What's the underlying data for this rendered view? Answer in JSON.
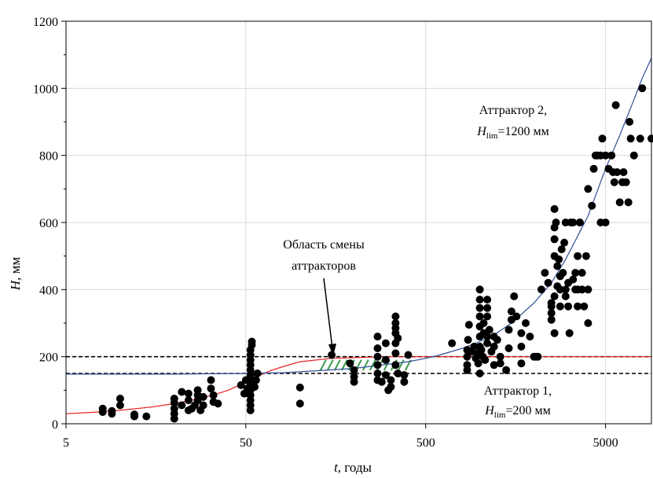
{
  "chart_data": {
    "type": "scatter",
    "xscale": "log",
    "xlim": [
      5,
      9000
    ],
    "ylim": [
      0,
      1200
    ],
    "xticks": [
      5,
      50,
      500,
      5000
    ],
    "xtick_labels": [
      "5",
      "50",
      "500",
      "5000"
    ],
    "yticks": [
      0,
      200,
      400,
      600,
      800,
      1000,
      1200
    ],
    "ytick_labels": [
      "0",
      "200",
      "400",
      "600",
      "800",
      "1000",
      "1200"
    ],
    "xlabel": {
      "var": "t",
      "rest": ", годы"
    },
    "ylabel": {
      "var": "H",
      "rest": ", мм"
    },
    "grid": true,
    "annotations": {
      "region_label": [
        "Область смены",
        "аттракторов"
      ],
      "attractor1": {
        "line1": "Аттрактор 1,",
        "var": "H",
        "sub": "lim",
        "rest": "=200 мм"
      },
      "attractor2": {
        "line1": "Аттрактор 2,",
        "var": "H",
        "sub": "lim",
        "rest": "=1200 мм"
      }
    },
    "reference_lines": [
      {
        "y": 200,
        "style": "dashed",
        "color": "#000000"
      },
      {
        "y": 150,
        "style": "dashed",
        "color": "#000000"
      }
    ],
    "attractor1_curve": {
      "color": "#e8201e",
      "x": [
        5,
        7,
        10,
        15,
        20,
        25,
        30,
        35,
        40,
        45,
        50,
        55,
        60,
        70,
        80,
        100,
        150,
        300,
        500,
        1000,
        9000
      ],
      "y": [
        30,
        34,
        40,
        50,
        60,
        70,
        80,
        90,
        100,
        113,
        125,
        137,
        145,
        160,
        170,
        185,
        195,
        200,
        200,
        200,
        200
      ]
    },
    "attractor2_curve": {
      "color": "#2f4f9a",
      "x": [
        5,
        20,
        50,
        80,
        100,
        200,
        400,
        500,
        600,
        800,
        1000,
        1200,
        1500,
        2000,
        2500,
        3000,
        4000,
        5000,
        6000,
        7000,
        8000,
        9000
      ],
      "y": [
        148,
        148,
        150,
        152,
        155,
        165,
        185,
        195,
        205,
        225,
        245,
        265,
        300,
        360,
        420,
        490,
        620,
        760,
        860,
        950,
        1030,
        1090
      ]
    },
    "transition_region": {
      "x": [
        130,
        400
      ],
      "y": [
        150,
        200
      ],
      "color": "#3a9a4a"
    },
    "series": [
      {
        "marker": "circle",
        "color": "#000000",
        "points": [
          [
            8,
            45
          ],
          [
            8,
            35
          ],
          [
            9,
            38
          ],
          [
            9,
            30
          ],
          [
            10,
            75
          ],
          [
            10,
            55
          ],
          [
            12,
            28
          ],
          [
            12,
            22
          ],
          [
            14,
            22
          ],
          [
            20,
            15
          ],
          [
            20,
            30
          ],
          [
            20,
            45
          ],
          [
            20,
            62
          ],
          [
            20,
            75
          ],
          [
            22,
            95
          ],
          [
            22,
            55
          ],
          [
            24,
            70
          ],
          [
            24,
            90
          ],
          [
            24,
            40
          ],
          [
            25,
            45
          ],
          [
            26,
            55
          ],
          [
            27,
            70
          ],
          [
            27,
            85
          ],
          [
            27,
            100
          ],
          [
            28,
            40
          ],
          [
            29,
            55
          ],
          [
            29,
            80
          ],
          [
            32,
            130
          ],
          [
            32,
            105
          ],
          [
            33,
            65
          ],
          [
            33,
            85
          ],
          [
            35,
            60
          ],
          [
            47,
            115
          ],
          [
            49,
            90
          ],
          [
            50,
            130
          ],
          [
            51,
            105
          ],
          [
            53,
            40
          ],
          [
            53,
            55
          ],
          [
            53,
            70
          ],
          [
            53,
            85
          ],
          [
            53,
            100
          ],
          [
            53,
            115
          ],
          [
            53,
            130
          ],
          [
            53,
            145
          ],
          [
            53,
            160
          ],
          [
            53,
            175
          ],
          [
            53,
            190
          ],
          [
            53,
            205
          ],
          [
            53,
            220
          ],
          [
            54,
            235
          ],
          [
            54,
            245
          ],
          [
            56,
            110
          ],
          [
            57,
            130
          ],
          [
            58,
            150
          ],
          [
            100,
            108
          ],
          [
            100,
            60
          ],
          [
            150,
            205
          ],
          [
            190,
            180
          ],
          [
            200,
            160
          ],
          [
            200,
            140
          ],
          [
            200,
            125
          ],
          [
            270,
            130
          ],
          [
            270,
            150
          ],
          [
            270,
            175
          ],
          [
            270,
            200
          ],
          [
            270,
            225
          ],
          [
            270,
            260
          ],
          [
            285,
            125
          ],
          [
            300,
            145
          ],
          [
            300,
            190
          ],
          [
            300,
            240
          ],
          [
            310,
            100
          ],
          [
            320,
            110
          ],
          [
            320,
            130
          ],
          [
            340,
            175
          ],
          [
            340,
            210
          ],
          [
            340,
            240
          ],
          [
            340,
            270
          ],
          [
            340,
            300
          ],
          [
            340,
            320
          ],
          [
            340,
            285
          ],
          [
            350,
            255
          ],
          [
            350,
            150
          ],
          [
            380,
            125
          ],
          [
            380,
            145
          ],
          [
            400,
            205
          ],
          [
            700,
            240
          ],
          [
            850,
            160
          ],
          [
            850,
            175
          ],
          [
            850,
            200
          ],
          [
            850,
            220
          ],
          [
            860,
            250
          ],
          [
            870,
            295
          ],
          [
            900,
            215
          ],
          [
            930,
            230
          ],
          [
            950,
            195
          ],
          [
            980,
            180
          ],
          [
            980,
            210
          ],
          [
            1000,
            230
          ],
          [
            1000,
            260
          ],
          [
            1000,
            290
          ],
          [
            1000,
            320
          ],
          [
            1000,
            345
          ],
          [
            1000,
            370
          ],
          [
            1000,
            400
          ],
          [
            1000,
            150
          ],
          [
            1020,
            220
          ],
          [
            1040,
            200
          ],
          [
            1050,
            270
          ],
          [
            1050,
            300
          ],
          [
            1070,
            190
          ],
          [
            1100,
            260
          ],
          [
            1100,
            320
          ],
          [
            1100,
            345
          ],
          [
            1100,
            370
          ],
          [
            1100,
            240
          ],
          [
            1130,
            280
          ],
          [
            1160,
            215
          ],
          [
            1200,
            175
          ],
          [
            1200,
            230
          ],
          [
            1200,
            260
          ],
          [
            1250,
            250
          ],
          [
            1300,
            200
          ],
          [
            1300,
            180
          ],
          [
            1400,
            160
          ],
          [
            1450,
            225
          ],
          [
            1450,
            280
          ],
          [
            1500,
            310
          ],
          [
            1500,
            335
          ],
          [
            1550,
            380
          ],
          [
            1600,
            320
          ],
          [
            1700,
            270
          ],
          [
            1700,
            230
          ],
          [
            1700,
            180
          ],
          [
            1800,
            300
          ],
          [
            1900,
            260
          ],
          [
            2000,
            200
          ],
          [
            2050,
            200
          ],
          [
            2100,
            200
          ],
          [
            2200,
            400
          ],
          [
            2300,
            450
          ],
          [
            2400,
            420
          ],
          [
            2500,
            360
          ],
          [
            2500,
            310
          ],
          [
            2500,
            330
          ],
          [
            2500,
            350
          ],
          [
            2600,
            380
          ],
          [
            2600,
            500
          ],
          [
            2600,
            550
          ],
          [
            2600,
            585
          ],
          [
            2600,
            640
          ],
          [
            2600,
            270
          ],
          [
            2650,
            600
          ],
          [
            2700,
            470
          ],
          [
            2700,
            410
          ],
          [
            2750,
            490
          ],
          [
            2800,
            350
          ],
          [
            2800,
            400
          ],
          [
            2800,
            440
          ],
          [
            2850,
            520
          ],
          [
            2900,
            450
          ],
          [
            2950,
            540
          ],
          [
            3000,
            600
          ],
          [
            3000,
            380
          ],
          [
            3000,
            400
          ],
          [
            3100,
            350
          ],
          [
            3100,
            420
          ],
          [
            3150,
            270
          ],
          [
            3200,
            600
          ],
          [
            3300,
            600
          ],
          [
            3300,
            430
          ],
          [
            3400,
            400
          ],
          [
            3400,
            450
          ],
          [
            3500,
            350
          ],
          [
            3500,
            400
          ],
          [
            3500,
            500
          ],
          [
            3600,
            600
          ],
          [
            3600,
            600
          ],
          [
            3700,
            400
          ],
          [
            3700,
            450
          ],
          [
            3800,
            350
          ],
          [
            3900,
            500
          ],
          [
            4000,
            300
          ],
          [
            4000,
            400
          ],
          [
            4000,
            700
          ],
          [
            4200,
            650
          ],
          [
            4300,
            760
          ],
          [
            4400,
            800
          ],
          [
            4500,
            800
          ],
          [
            4700,
            600
          ],
          [
            4700,
            800
          ],
          [
            4800,
            850
          ],
          [
            5000,
            600
          ],
          [
            5000,
            800
          ],
          [
            5200,
            760
          ],
          [
            5400,
            800
          ],
          [
            5500,
            750
          ],
          [
            5600,
            720
          ],
          [
            5700,
            950
          ],
          [
            5800,
            750
          ],
          [
            6000,
            660
          ],
          [
            6200,
            720
          ],
          [
            6300,
            750
          ],
          [
            6500,
            720
          ],
          [
            6700,
            660
          ],
          [
            6800,
            900
          ],
          [
            6900,
            850
          ],
          [
            7200,
            800
          ],
          [
            7800,
            850
          ],
          [
            8000,
            1000
          ],
          [
            9000,
            850
          ]
        ]
      }
    ]
  }
}
